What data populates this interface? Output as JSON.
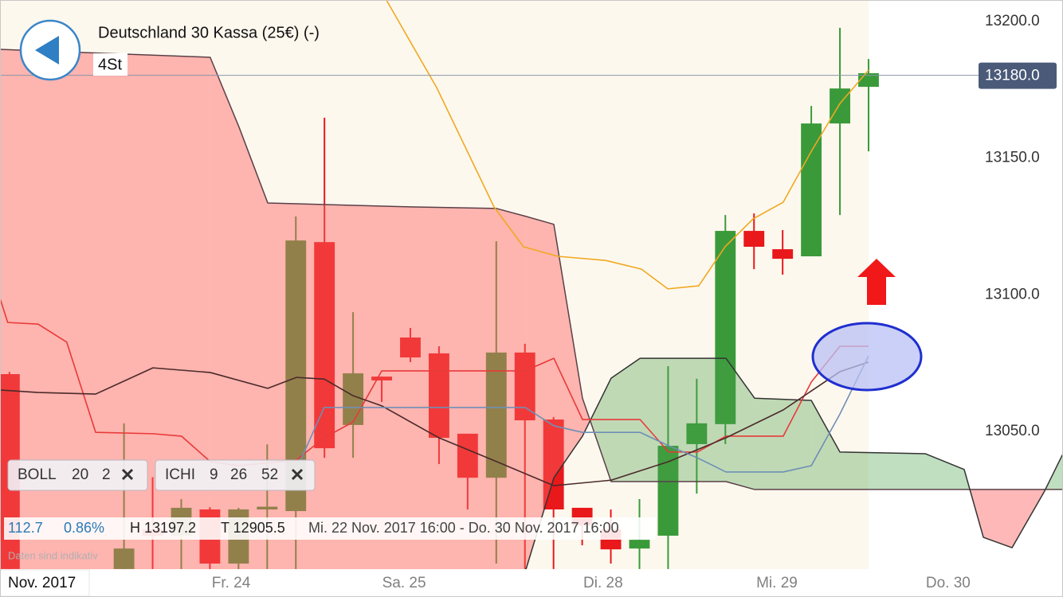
{
  "header": {
    "title": "Deutschland 30 Kassa (25€) (-)",
    "interval": "4St"
  },
  "indicators": [
    {
      "name": "BOLL",
      "params": [
        20,
        2
      ]
    },
    {
      "name": "ICHI",
      "params": [
        9,
        26,
        52
      ]
    }
  ],
  "info_bar": {
    "change": "112.7",
    "change_pct": "0.86%",
    "high": "H 13197.2",
    "low": "T 12905.5",
    "range": "Mi. 22 Nov. 2017 16:00 - Do. 30 Nov. 2017 16:00"
  },
  "disclaimer": "Daten sind indikativ",
  "chart_data": {
    "type": "candlestick",
    "period_label": "Nov. 2017",
    "xlim": [
      -0.33,
      36.79
    ],
    "ylim": [
      12999.36,
      13207.57
    ],
    "yticks": [
      {
        "value": 13050,
        "label": "13050.0"
      },
      {
        "value": 13100,
        "label": "13100.0"
      },
      {
        "value": 13150,
        "label": "13150.0"
      },
      {
        "value": 13200,
        "label": "13200.0"
      }
    ],
    "xticks": [
      {
        "value": 7.74,
        "label": "Fr. 24"
      },
      {
        "value": 13.78,
        "label": "Sa. 25"
      },
      {
        "value": 20.73,
        "label": "Di. 28"
      },
      {
        "value": 26.8,
        "label": "Mi. 29"
      },
      {
        "value": 32.78,
        "label": "Do. 30"
      }
    ],
    "grid": false,
    "up_color": "#3a9a3a",
    "down_color": "#e8181b",
    "candles": {
      "x": [
        0,
        4,
        5,
        6,
        7,
        8,
        9,
        10,
        11,
        12,
        13,
        14,
        15,
        16,
        17,
        18,
        19,
        20,
        21,
        22,
        23,
        24,
        25,
        26,
        27,
        28,
        29,
        30
      ],
      "open": [
        13070.7,
        12999.4,
        13013.9,
        13011.6,
        13021.2,
        13001.4,
        13021.2,
        13020.6,
        13119.0,
        13052.1,
        13069.8,
        13084.1,
        13078.3,
        13048.9,
        13032.8,
        13078.6,
        13054.1,
        13021.8,
        13013.9,
        13006.9,
        13011.6,
        13045.1,
        13052.4,
        13123.1,
        13116.4,
        13113.8,
        13162.4,
        13175.8
      ],
      "high": [
        13071.5,
        13052.7,
        13033.0,
        13025.0,
        13022.0,
        13021.8,
        13045.0,
        13128.4,
        13164.5,
        13093.4,
        13069.8,
        13087.6,
        13080.9,
        13048.9,
        13119.3,
        13081.8,
        13055.0,
        13021.8,
        13021.2,
        13025.0,
        13073.6,
        13069.0,
        13128.9,
        13129.5,
        13123.4,
        13168.8,
        13197.4,
        13186.0
      ],
      "low": [
        12999.4,
        12999.4,
        12999.4,
        12999.4,
        12999.4,
        12999.4,
        12999.4,
        12999.4,
        13040.1,
        13040.1,
        13060.5,
        13075.1,
        13037.8,
        13021.2,
        13001.4,
        12999.4,
        12999.4,
        13008.1,
        13001.4,
        12999.4,
        12999.4,
        13027.0,
        13045.1,
        13109.1,
        13107.1,
        13113.8,
        13128.9,
        13152.2
      ],
      "close": [
        12999.4,
        13006.9,
        13011.6,
        13021.8,
        13001.4,
        13021.2,
        13022.2,
        13119.6,
        13043.6,
        13071.0,
        13068.4,
        13076.8,
        13047.4,
        13032.8,
        13078.6,
        13053.8,
        13021.2,
        13015.4,
        13006.6,
        13010.1,
        13044.5,
        13052.7,
        13123.1,
        13117.3,
        13112.9,
        13162.4,
        13175.2,
        13180.8
      ]
    },
    "cloud": {
      "x": [
        -0.33,
        7.01,
        8.02,
        9.02,
        14,
        17.01,
        18.04,
        19.01,
        20.01,
        21.01,
        22.02,
        25.02,
        26.02,
        28,
        29,
        31.98,
        33.34,
        34.01,
        35.01,
        36.13,
        36.79
      ],
      "span_a": [
        12992.1,
        12992.1,
        12992.1,
        12992.1,
        12992.1,
        12992.1,
        12999.4,
        13032.8,
        13048.0,
        13069.2,
        13076.5,
        13076.5,
        13061.9,
        13061.1,
        13042.2,
        13041.6,
        13035.8,
        13011.0,
        13007.2,
        13027.6,
        13041.6
      ],
      "span_b": [
        13189.5,
        13186.6,
        13161.0,
        13133.3,
        13131.9,
        13131.3,
        13128.4,
        13125.5,
        13061.9,
        13031.4,
        13031.4,
        13031.4,
        13028.5,
        13028.5,
        13028.5,
        13028.5,
        13028.5,
        13028.5,
        13028.5,
        13028.5,
        13028.5
      ],
      "bullish_color": "#4aa04a",
      "bearish_color": "#ff6262",
      "line_color": "#5a4048"
    },
    "lines": [
      {
        "color": "#f0a820",
        "x": [
          13.16,
          14.92,
          16.92,
          17.95,
          19.15,
          20.82,
          22.07,
          22.99,
          24.07,
          24.99,
          25.97,
          27.02,
          28,
          29,
          30
        ],
        "y": [
          13207.6,
          13175.5,
          13131.9,
          13117.3,
          13113.8,
          13112.3,
          13109.1,
          13101.9,
          13103.0,
          13117.3,
          13127.5,
          13133.6,
          13152.2,
          13169.7,
          13181.9
        ]
      },
      {
        "color": "#e83a3a",
        "x": [
          -0.33,
          -0.06,
          1,
          2,
          3.01,
          5.01,
          6.01,
          7.01,
          8.02,
          10.02,
          10.99,
          12,
          13,
          18.01,
          19.01,
          20.01,
          22.02,
          23.02,
          24.02,
          25.02,
          27.02,
          28,
          29,
          30
        ],
        "y": [
          13098.4,
          13089.6,
          13089.0,
          13082.4,
          13049.4,
          13048.9,
          13048.0,
          13038.7,
          13037.2,
          13039.3,
          13047.4,
          13053.2,
          13071.9,
          13071.9,
          13076.5,
          13054.1,
          13054.1,
          13042.2,
          13042.2,
          13048.0,
          13048.0,
          13067.8,
          13080.9,
          13080.9
        ]
      },
      {
        "color": "#4a2a2a",
        "x": [
          -0.33,
          1,
          3.01,
          5.01,
          7.01,
          9.02,
          10.02,
          10.99,
          12,
          13,
          15,
          17.01,
          19.01,
          21.01,
          23.02,
          25.02,
          27.02,
          29,
          30
        ],
        "y": [
          13064.9,
          13064.0,
          13063.4,
          13073.0,
          13071.3,
          13065.5,
          13069.5,
          13068.9,
          13062.8,
          13059.1,
          13047.4,
          13038.7,
          13029.9,
          13031.9,
          13038.7,
          13047.4,
          13057.6,
          13071.6,
          13075.1
        ]
      },
      {
        "color": "#6f8fb5",
        "x": [
          10.02,
          10.99,
          18.01,
          19.01,
          20.01,
          22.02,
          23.02,
          24.02,
          25.02,
          27.02,
          28,
          29,
          30
        ],
        "y": [
          13035.8,
          13058.5,
          13058.5,
          13051.8,
          13049.4,
          13049.4,
          13044.5,
          13040.1,
          13034.9,
          13034.9,
          13037.2,
          13056.1,
          13077.4
        ]
      }
    ],
    "last_price": {
      "value": 13180,
      "label": "13180.0"
    }
  }
}
